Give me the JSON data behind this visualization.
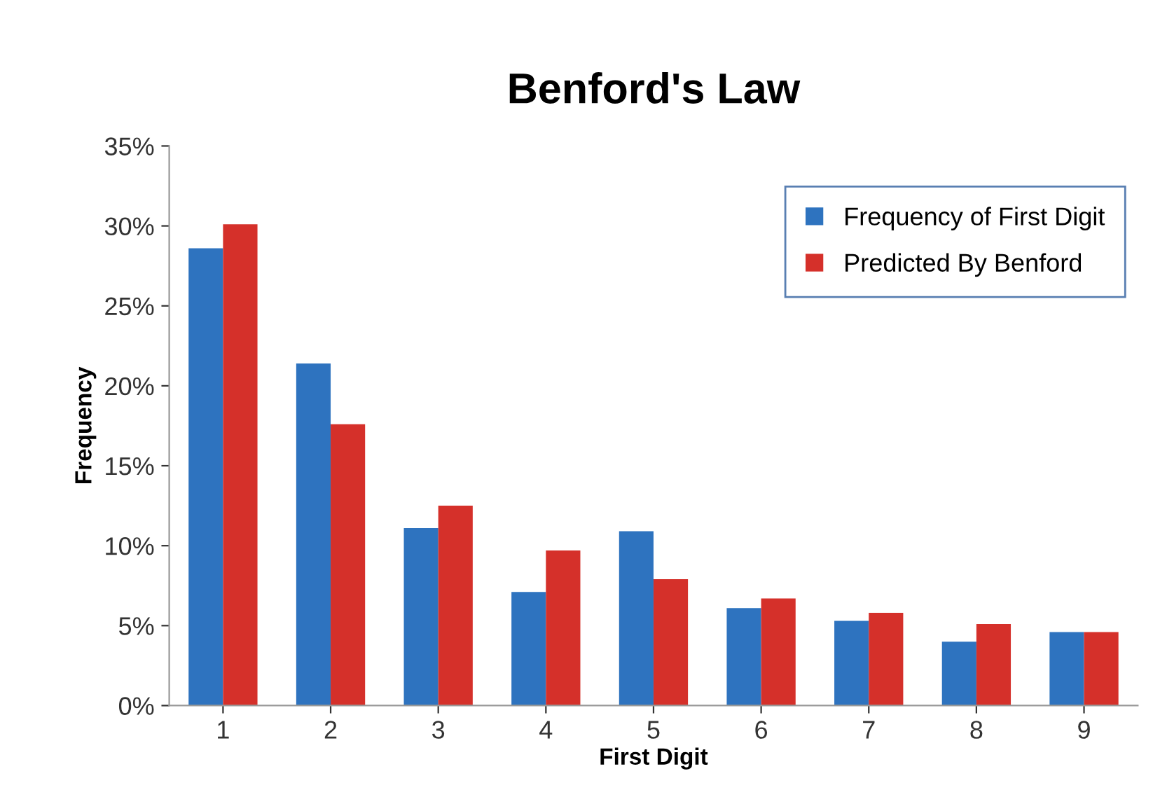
{
  "chart_data": {
    "type": "bar",
    "title": "Benford's Law",
    "xlabel": "First Digit",
    "ylabel": "Frequency",
    "categories": [
      "1",
      "2",
      "3",
      "4",
      "5",
      "6",
      "7",
      "8",
      "9"
    ],
    "series": [
      {
        "name": "Frequency of First Digit",
        "color": "#2e73bf",
        "values": [
          28.6,
          21.4,
          11.1,
          7.1,
          10.9,
          6.1,
          5.3,
          4.0,
          4.6
        ]
      },
      {
        "name": "Predicted By Benford",
        "color": "#d5302a",
        "values": [
          30.1,
          17.6,
          12.5,
          9.7,
          7.9,
          6.7,
          5.8,
          5.1,
          4.6
        ]
      }
    ],
    "ylim": [
      0,
      35
    ],
    "yticks": [
      {
        "value": 0,
        "label": "0%"
      },
      {
        "value": 5,
        "label": "5%"
      },
      {
        "value": 10,
        "label": "10%"
      },
      {
        "value": 15,
        "label": "15%"
      },
      {
        "value": 20,
        "label": "20%"
      },
      {
        "value": 25,
        "label": "25%"
      },
      {
        "value": 30,
        "label": "30%"
      },
      {
        "value": 35,
        "label": "35%"
      }
    ],
    "legend": "top right"
  }
}
